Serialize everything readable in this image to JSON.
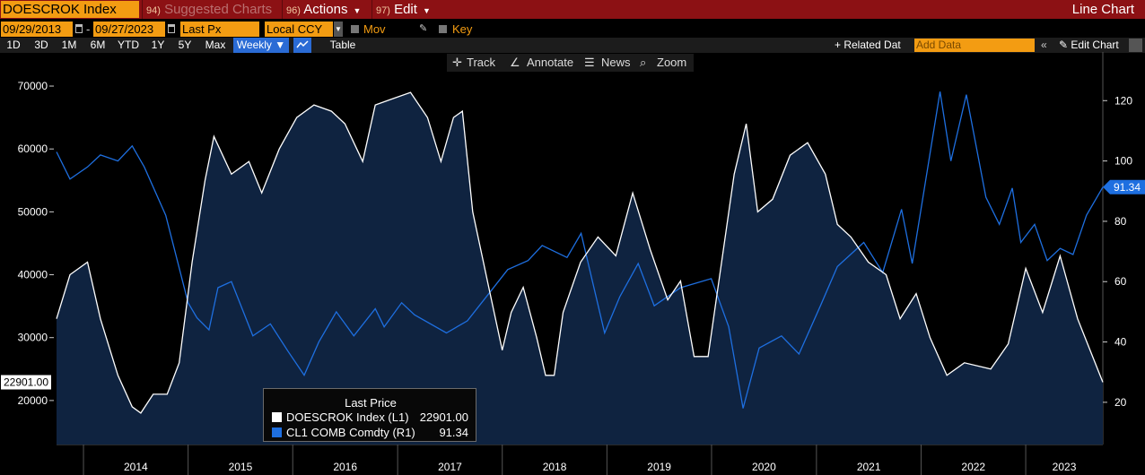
{
  "header": {
    "ticker": "DOESCROK Index",
    "menus": [
      {
        "num": "94)",
        "label": "Suggested Charts",
        "dim": true
      },
      {
        "num": "96)",
        "label": "Actions",
        "dim": false
      },
      {
        "num": "97)",
        "label": "Edit",
        "dim": false
      }
    ],
    "right_title": "Line Chart"
  },
  "controls": {
    "start_date": "09/29/2013",
    "end_date": "09/27/2023",
    "dash": "-",
    "field": "Last Px",
    "currency": "Local CCY",
    "mov_avgs": "Mov Avgs",
    "key_events": "Key Events"
  },
  "ranges": {
    "buttons": [
      "1D",
      "3D",
      "1M",
      "6M",
      "YTD",
      "1Y",
      "5Y",
      "Max"
    ],
    "frequency": "Weekly",
    "table": "Table",
    "related": "+ Related Dat",
    "add_data_placeholder": "Add Data",
    "edit_chart": "Edit Chart"
  },
  "toolbar": {
    "track": "Track",
    "annotate": "Annotate",
    "news": "News",
    "zoom": "Zoom"
  },
  "legend": {
    "title": "Last Price",
    "items": [
      {
        "name": "DOESCROK Index  (L1)",
        "value": "22901.00",
        "color": "#ffffff"
      },
      {
        "name": "CL1 COMB Comdty  (R1)",
        "value": "91.34",
        "color": "#1e6fe0"
      }
    ]
  },
  "chart_data": {
    "type": "line",
    "x_range": [
      "2013-09-29",
      "2023-09-27"
    ],
    "x_tick_labels": [
      "2014",
      "2015",
      "2016",
      "2017",
      "2018",
      "2019",
      "2020",
      "2021",
      "2022",
      "2023"
    ],
    "left_axis": {
      "ticks": [
        20000,
        30000,
        40000,
        50000,
        60000,
        70000
      ],
      "range": [
        13000,
        72000
      ],
      "last_value_label": "22901.00"
    },
    "right_axis": {
      "ticks": [
        20,
        40,
        60,
        80,
        100,
        120
      ],
      "range": [
        6,
        129
      ],
      "last_value_label": "91.34"
    },
    "series": [
      {
        "name": "DOESCROK Index (L1)",
        "axis": "left",
        "color": "#ffffff",
        "fill": "#0f2340",
        "points": [
          [
            "2013-09-29",
            33000
          ],
          [
            "2013-11-15",
            40000
          ],
          [
            "2014-01-15",
            42000
          ],
          [
            "2014-03-01",
            33000
          ],
          [
            "2014-05-01",
            24000
          ],
          [
            "2014-06-20",
            19000
          ],
          [
            "2014-07-20",
            18000
          ],
          [
            "2014-09-01",
            21000
          ],
          [
            "2014-10-20",
            21000
          ],
          [
            "2014-12-01",
            26000
          ],
          [
            "2015-01-15",
            42000
          ],
          [
            "2015-03-01",
            55000
          ],
          [
            "2015-04-01",
            62000
          ],
          [
            "2015-06-01",
            56000
          ],
          [
            "2015-08-01",
            58000
          ],
          [
            "2015-09-15",
            53000
          ],
          [
            "2015-11-15",
            60000
          ],
          [
            "2016-01-15",
            65000
          ],
          [
            "2016-03-15",
            67000
          ],
          [
            "2016-05-15",
            66000
          ],
          [
            "2016-07-01",
            64000
          ],
          [
            "2016-09-01",
            58000
          ],
          [
            "2016-10-15",
            67000
          ],
          [
            "2016-12-15",
            68000
          ],
          [
            "2017-02-15",
            69000
          ],
          [
            "2017-04-15",
            65000
          ],
          [
            "2017-06-01",
            58000
          ],
          [
            "2017-07-15",
            65000
          ],
          [
            "2017-08-15",
            66000
          ],
          [
            "2017-09-20",
            50000
          ],
          [
            "2017-11-15",
            38000
          ],
          [
            "2018-01-01",
            28000
          ],
          [
            "2018-02-01",
            34000
          ],
          [
            "2018-03-15",
            38000
          ],
          [
            "2018-05-01",
            30000
          ],
          [
            "2018-06-01",
            24000
          ],
          [
            "2018-07-01",
            24000
          ],
          [
            "2018-08-01",
            34000
          ],
          [
            "2018-10-01",
            42000
          ],
          [
            "2018-12-01",
            46000
          ],
          [
            "2019-02-01",
            43000
          ],
          [
            "2019-04-01",
            53000
          ],
          [
            "2019-06-01",
            44000
          ],
          [
            "2019-08-01",
            36000
          ],
          [
            "2019-09-15",
            39000
          ],
          [
            "2019-11-01",
            27000
          ],
          [
            "2019-12-20",
            27000
          ],
          [
            "2020-03-20",
            56000
          ],
          [
            "2020-05-01",
            64000
          ],
          [
            "2020-06-10",
            50000
          ],
          [
            "2020-08-01",
            52000
          ],
          [
            "2020-10-01",
            59000
          ],
          [
            "2020-12-01",
            61000
          ],
          [
            "2021-02-01",
            56000
          ],
          [
            "2021-03-15",
            48000
          ],
          [
            "2021-05-01",
            46000
          ],
          [
            "2021-07-01",
            42000
          ],
          [
            "2021-09-01",
            40000
          ],
          [
            "2021-10-20",
            33000
          ],
          [
            "2021-12-15",
            37000
          ],
          [
            "2022-02-01",
            30000
          ],
          [
            "2022-04-01",
            24000
          ],
          [
            "2022-06-01",
            26000
          ],
          [
            "2022-09-01",
            25000
          ],
          [
            "2022-11-01",
            29000
          ],
          [
            "2023-01-01",
            41000
          ],
          [
            "2023-03-01",
            34000
          ],
          [
            "2023-05-01",
            43000
          ],
          [
            "2023-07-01",
            33000
          ],
          [
            "2023-09-27",
            22901
          ]
        ]
      },
      {
        "name": "CL1 COMB Comdty (R1)",
        "axis": "right",
        "color": "#1e6fe0",
        "points": [
          [
            "2013-09-29",
            103
          ],
          [
            "2013-11-15",
            94
          ],
          [
            "2014-01-15",
            98
          ],
          [
            "2014-03-01",
            102
          ],
          [
            "2014-05-01",
            100
          ],
          [
            "2014-06-20",
            105
          ],
          [
            "2014-08-01",
            98
          ],
          [
            "2014-10-15",
            82
          ],
          [
            "2015-01-01",
            53
          ],
          [
            "2015-02-01",
            48
          ],
          [
            "2015-03-15",
            44
          ],
          [
            "2015-04-15",
            58
          ],
          [
            "2015-06-01",
            60
          ],
          [
            "2015-08-15",
            42
          ],
          [
            "2015-10-15",
            46
          ],
          [
            "2015-12-15",
            37
          ],
          [
            "2016-02-10",
            29
          ],
          [
            "2016-04-01",
            40
          ],
          [
            "2016-06-01",
            50
          ],
          [
            "2016-08-01",
            42
          ],
          [
            "2016-10-15",
            51
          ],
          [
            "2016-11-15",
            45
          ],
          [
            "2017-01-15",
            53
          ],
          [
            "2017-03-01",
            49
          ],
          [
            "2017-06-20",
            43
          ],
          [
            "2017-09-01",
            47
          ],
          [
            "2017-11-15",
            56
          ],
          [
            "2018-01-20",
            64
          ],
          [
            "2018-04-01",
            67
          ],
          [
            "2018-05-20",
            72
          ],
          [
            "2018-08-15",
            68
          ],
          [
            "2018-10-03",
            76
          ],
          [
            "2018-12-24",
            43
          ],
          [
            "2019-02-15",
            55
          ],
          [
            "2019-04-20",
            66
          ],
          [
            "2019-06-15",
            52
          ],
          [
            "2019-09-15",
            58
          ],
          [
            "2019-12-31",
            61
          ],
          [
            "2020-03-01",
            45
          ],
          [
            "2020-04-20",
            18
          ],
          [
            "2020-06-15",
            38
          ],
          [
            "2020-09-01",
            42
          ],
          [
            "2020-11-01",
            36
          ],
          [
            "2021-01-15",
            52
          ],
          [
            "2021-03-15",
            65
          ],
          [
            "2021-06-15",
            73
          ],
          [
            "2021-08-20",
            63
          ],
          [
            "2021-10-25",
            84
          ],
          [
            "2021-12-01",
            66
          ],
          [
            "2022-03-08",
            123
          ],
          [
            "2022-04-15",
            100
          ],
          [
            "2022-06-08",
            122
          ],
          [
            "2022-08-15",
            88
          ],
          [
            "2022-10-01",
            79
          ],
          [
            "2022-11-15",
            91
          ],
          [
            "2022-12-15",
            73
          ],
          [
            "2023-02-01",
            79
          ],
          [
            "2023-03-17",
            67
          ],
          [
            "2023-05-01",
            71
          ],
          [
            "2023-06-15",
            69
          ],
          [
            "2023-08-01",
            82
          ],
          [
            "2023-09-27",
            91.34
          ]
        ]
      }
    ]
  }
}
